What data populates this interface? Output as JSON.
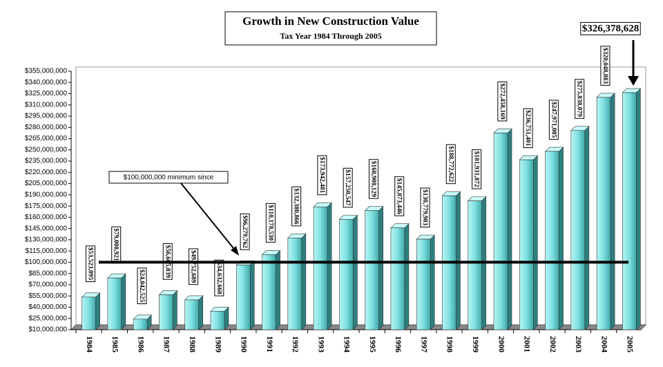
{
  "chart_data": {
    "type": "bar3d",
    "title": "Growth in New Construction Value",
    "subtitle": "Tax Year 1984 Through 2005",
    "annotation": "$100,000,000 minimum since",
    "reference_line": 100000000,
    "color": "#7fe0e0",
    "categories": [
      "1984",
      "1985",
      "1986",
      "1987",
      "1988",
      "1989",
      "1990",
      "1991",
      "1992",
      "1993",
      "1994",
      "1995",
      "1996",
      "1997",
      "1998",
      "1999",
      "2000",
      "2001",
      "2002",
      "2003",
      "2004",
      "2005"
    ],
    "values": [
      53523095,
      79008921,
      24042525,
      56605039,
      49752689,
      34632668,
      96279762,
      110178530,
      132380866,
      173942481,
      157250547,
      168908129,
      145873446,
      130779903,
      188772622,
      181931872,
      272458169,
      236751401,
      247971005,
      275838079,
      320048883,
      326378628
    ],
    "value_labels": [
      "$53,523,095",
      "$79,008,921",
      "$24,042,525",
      "$56,605,039",
      "$49,752,689",
      "$34,632,668",
      "$96,279,762",
      "$110,178,530",
      "$132,380,866",
      "$173,942,481",
      "$157,250,547",
      "$168,908,129",
      "$145,873,446",
      "$130,779,903",
      "$188,772,622",
      "$181,931,872",
      "$272,458,169",
      "$236,751,401",
      "$247,971,005",
      "$275,838,079",
      "$320,048,883",
      "$326,378,628"
    ],
    "ylim": [
      10000000,
      355000000
    ],
    "yticks": [
      {
        "value": 10000000,
        "label": "$10,000,000"
      },
      {
        "value": 25000000,
        "label": "$25,000,000"
      },
      {
        "value": 40000000,
        "label": "$40,000,000"
      },
      {
        "value": 55000000,
        "label": "$55,000,000"
      },
      {
        "value": 70000000,
        "label": "$70,000,000"
      },
      {
        "value": 85000000,
        "label": "$85,000,000"
      },
      {
        "value": 100000000,
        "label": "$100,000,000"
      },
      {
        "value": 115000000,
        "label": "$115,000,000"
      },
      {
        "value": 130000000,
        "label": "$130,000,000"
      },
      {
        "value": 145000000,
        "label": "$145,000,000"
      },
      {
        "value": 160000000,
        "label": "$160,000,000"
      },
      {
        "value": 175000000,
        "label": "$175,000,000"
      },
      {
        "value": 190000000,
        "label": "$190,000,000"
      },
      {
        "value": 205000000,
        "label": "$205,000,000"
      },
      {
        "value": 220000000,
        "label": "$220,000,000"
      },
      {
        "value": 235000000,
        "label": "$235,000,000"
      },
      {
        "value": 250000000,
        "label": "$250,000,000"
      },
      {
        "value": 265000000,
        "label": "$265,000,000"
      },
      {
        "value": 280000000,
        "label": "$280,000,000"
      },
      {
        "value": 295000000,
        "label": "$295,000,000"
      },
      {
        "value": 310000000,
        "label": "$310,000,000"
      },
      {
        "value": 325000000,
        "label": "$325,000,000"
      },
      {
        "value": 340000000,
        "label": "$340,000,000"
      },
      {
        "value": 355000000,
        "label": "$355,000,000"
      }
    ]
  }
}
